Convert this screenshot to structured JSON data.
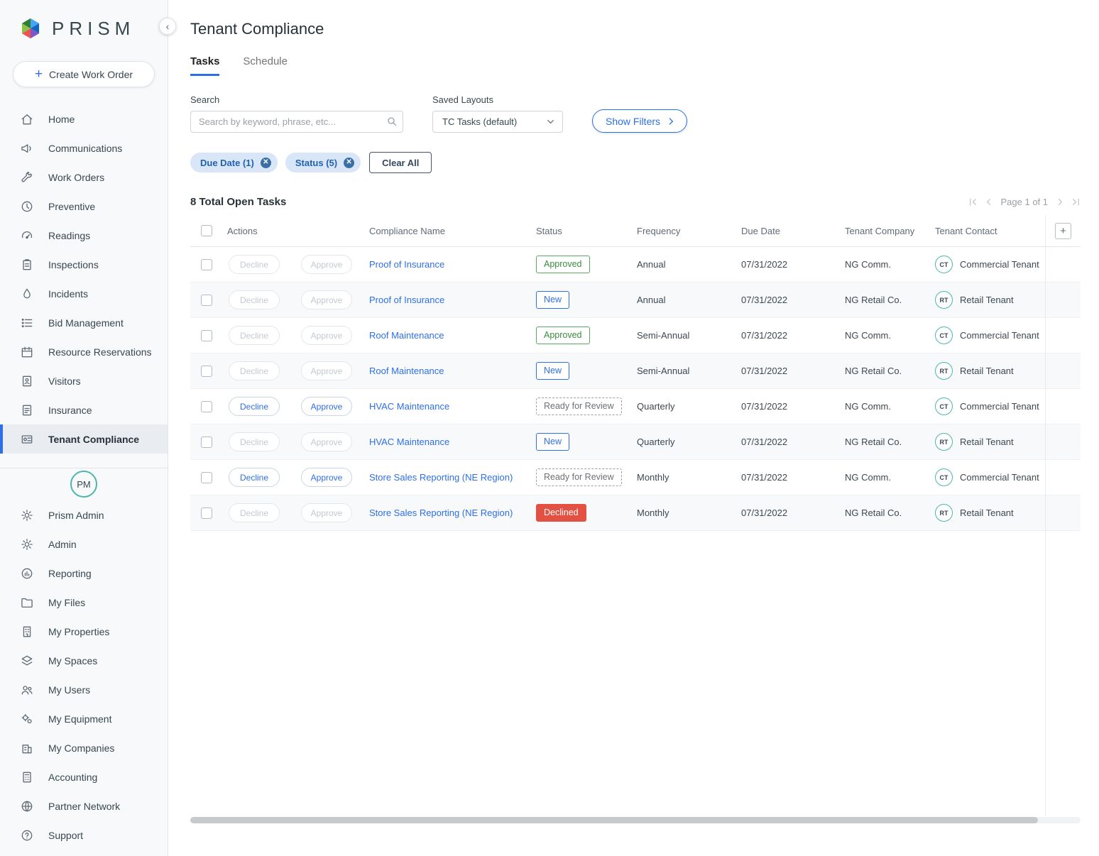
{
  "app": {
    "logo_text": "PRISM"
  },
  "sidebar": {
    "create_button": "Create Work Order",
    "avatar": "PM",
    "items_top": [
      {
        "label": "Home",
        "icon": "home",
        "active": false
      },
      {
        "label": "Communications",
        "icon": "megaphone",
        "active": false
      },
      {
        "label": "Work Orders",
        "icon": "wrench",
        "active": false
      },
      {
        "label": "Preventive",
        "icon": "clock",
        "active": false
      },
      {
        "label": "Readings",
        "icon": "gauge",
        "active": false
      },
      {
        "label": "Inspections",
        "icon": "clipboard",
        "active": false
      },
      {
        "label": "Incidents",
        "icon": "droplet",
        "active": false
      },
      {
        "label": "Bid Management",
        "icon": "list",
        "active": false
      },
      {
        "label": "Resource Reservations",
        "icon": "calendar",
        "active": false
      },
      {
        "label": "Visitors",
        "icon": "badge",
        "active": false
      },
      {
        "label": "Insurance",
        "icon": "document",
        "active": false
      },
      {
        "label": "Tenant Compliance",
        "icon": "compliance",
        "active": true
      }
    ],
    "items_bottom": [
      {
        "label": "Prism Admin",
        "icon": "gear",
        "active": false
      },
      {
        "label": "Admin",
        "icon": "gear",
        "active": false
      },
      {
        "label": "Reporting",
        "icon": "chart",
        "active": false
      },
      {
        "label": "My Files",
        "icon": "folder",
        "active": false
      },
      {
        "label": "My Properties",
        "icon": "building",
        "active": false
      },
      {
        "label": "My Spaces",
        "icon": "layers",
        "active": false
      },
      {
        "label": "My Users",
        "icon": "users",
        "active": false
      },
      {
        "label": "My Equipment",
        "icon": "gears",
        "active": false
      },
      {
        "label": "My Companies",
        "icon": "company",
        "active": false
      },
      {
        "label": "Accounting",
        "icon": "calculator",
        "active": false
      },
      {
        "label": "Partner Network",
        "icon": "globe",
        "active": false
      },
      {
        "label": "Support",
        "icon": "help",
        "active": false
      }
    ]
  },
  "header": {
    "title": "Tenant Compliance"
  },
  "tabs": [
    {
      "label": "Tasks",
      "active": true
    },
    {
      "label": "Schedule",
      "active": false
    }
  ],
  "filters": {
    "search_label": "Search",
    "search_placeholder": "Search by keyword, phrase, etc...",
    "saved_layouts_label": "Saved Layouts",
    "saved_layouts_value": "TC Tasks (default)",
    "show_filters_label": "Show Filters",
    "chips": [
      {
        "label": "Due Date (1)"
      },
      {
        "label": "Status (5)"
      }
    ],
    "clear_all_label": "Clear All"
  },
  "table": {
    "summary": "8 Total Open Tasks",
    "pagination_label": "Page 1 of 1",
    "columns": [
      "Actions",
      "Compliance Name",
      "Status",
      "Frequency",
      "Due Date",
      "Tenant Company",
      "Tenant Contact"
    ],
    "decline_label": "Decline",
    "approve_label": "Approve",
    "add_column_label": "+",
    "rows": [
      {
        "compliance": "Proof of Insurance",
        "status": "Approved",
        "status_type": "approved",
        "frequency": "Annual",
        "due_date": "07/31/2022",
        "company": "NG Comm.",
        "contact_initials": "CT",
        "contact_name": "Commercial Tenant",
        "actions_enabled": false
      },
      {
        "compliance": "Proof of Insurance",
        "status": "New",
        "status_type": "new",
        "frequency": "Annual",
        "due_date": "07/31/2022",
        "company": "NG Retail Co.",
        "contact_initials": "RT",
        "contact_name": "Retail Tenant",
        "actions_enabled": false
      },
      {
        "compliance": "Roof Maintenance",
        "status": "Approved",
        "status_type": "approved",
        "frequency": "Semi-Annual",
        "due_date": "07/31/2022",
        "company": "NG Comm.",
        "contact_initials": "CT",
        "contact_name": "Commercial Tenant",
        "actions_enabled": false
      },
      {
        "compliance": "Roof Maintenance",
        "status": "New",
        "status_type": "new",
        "frequency": "Semi-Annual",
        "due_date": "07/31/2022",
        "company": "NG Retail Co.",
        "contact_initials": "RT",
        "contact_name": "Retail Tenant",
        "actions_enabled": false
      },
      {
        "compliance": "HVAC Maintenance",
        "status": "Ready for Review",
        "status_type": "ready",
        "frequency": "Quarterly",
        "due_date": "07/31/2022",
        "company": "NG Comm.",
        "contact_initials": "CT",
        "contact_name": "Commercial Tenant",
        "actions_enabled": true
      },
      {
        "compliance": "HVAC Maintenance",
        "status": "New",
        "status_type": "new",
        "frequency": "Quarterly",
        "due_date": "07/31/2022",
        "company": "NG Retail Co.",
        "contact_initials": "RT",
        "contact_name": "Retail Tenant",
        "actions_enabled": false
      },
      {
        "compliance": "Store Sales Reporting (NE Region)",
        "status": "Ready for Review",
        "status_type": "ready",
        "frequency": "Monthly",
        "due_date": "07/31/2022",
        "company": "NG Comm.",
        "contact_initials": "CT",
        "contact_name": "Commercial Tenant",
        "actions_enabled": true
      },
      {
        "compliance": "Store Sales Reporting (NE Region)",
        "status": "Declined",
        "status_type": "declined",
        "frequency": "Monthly",
        "due_date": "07/31/2022",
        "company": "NG Retail Co.",
        "contact_initials": "RT",
        "contact_name": "Retail Tenant",
        "actions_enabled": false
      }
    ]
  },
  "colors": {
    "accent_blue": "#2e6fe8",
    "chip_bg": "#d8e6f8",
    "approved_green": "#388e3c",
    "declined_red": "#e25141",
    "avatar_teal": "#4db6ac",
    "sidebar_bg": "#f8f9fa"
  }
}
